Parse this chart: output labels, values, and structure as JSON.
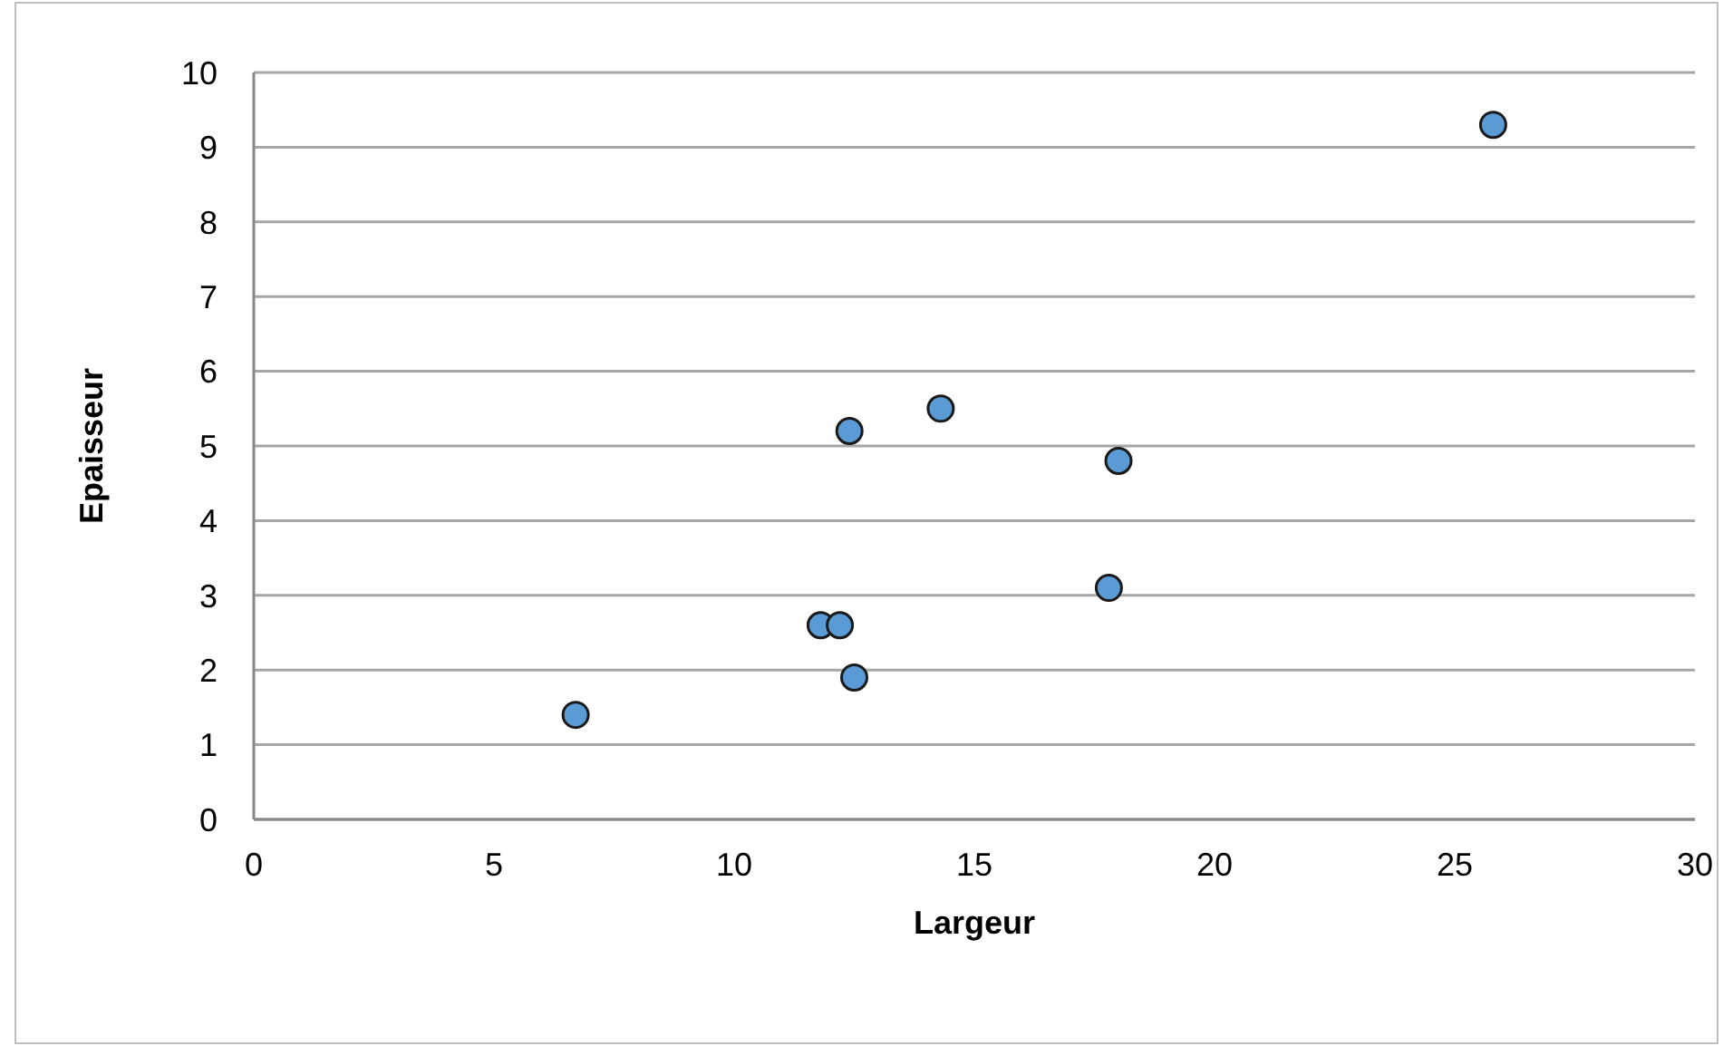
{
  "chart_data": {
    "type": "scatter",
    "xlabel": "Largeur",
    "ylabel": "Epaisseur",
    "x": [
      6.7,
      11.8,
      12.2,
      12.5,
      12.4,
      14.3,
      18,
      17.8,
      25.8
    ],
    "values": [
      1.4,
      2.6,
      2.6,
      1.9,
      5.2,
      5.5,
      4.8,
      3.1,
      9.3
    ],
    "color": "#5b9bd5",
    "marker": "circle",
    "grid": "y",
    "legend": false,
    "xlim": [
      0,
      30
    ],
    "xticks": [
      0,
      5,
      10,
      15,
      20,
      25,
      30
    ],
    "ylim": [
      0,
      10
    ],
    "yticks": [
      0,
      1,
      2,
      3,
      4,
      5,
      6,
      7,
      8,
      9,
      10
    ]
  }
}
